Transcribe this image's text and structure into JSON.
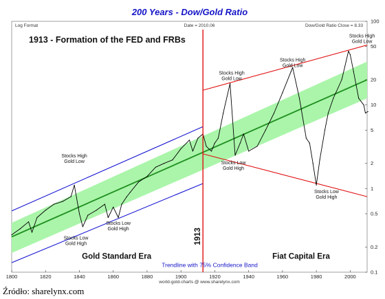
{
  "chart_data": {
    "type": "line",
    "title": "200 Years - Dow/Gold Ratio",
    "header_left": "Log Format",
    "header_center": "Date = 2010.06",
    "header_right": "Dow/Gold Ratio Close = 8.33",
    "heading_annotation": "1913 - Formation of the FED and FRBs",
    "xlim": [
      1800,
      2010
    ],
    "ylim": [
      0.1,
      100
    ],
    "log_y": true,
    "x_ticks": [
      1800,
      1820,
      1840,
      1860,
      1880,
      1900,
      1920,
      1940,
      1960,
      1980,
      2000
    ],
    "y_ticks": [
      0.1,
      0.2,
      0.5,
      1,
      2,
      5,
      10,
      20,
      50,
      100
    ],
    "y_tick_labels": [
      "0.1",
      "0.2",
      "0.5",
      "1",
      "2",
      "5",
      "10",
      "20",
      "50",
      "100"
    ],
    "series": [
      {
        "x": [
          1800,
          1805,
          1810,
          1812,
          1815,
          1820,
          1825,
          1830,
          1835,
          1837,
          1840,
          1842,
          1845,
          1850,
          1855,
          1857,
          1860,
          1863,
          1865,
          1868,
          1870,
          1875,
          1880,
          1885,
          1890,
          1895,
          1900,
          1905,
          1907,
          1910,
          1913,
          1915,
          1918,
          1920,
          1922,
          1925,
          1929,
          1932,
          1935,
          1937,
          1940,
          1945,
          1950,
          1955,
          1960,
          1965,
          1966,
          1970,
          1974,
          1976,
          1978,
          1980,
          1982,
          1985,
          1987,
          1990,
          1995,
          1999,
          2000,
          2002,
          2005,
          2008,
          2009,
          2010.5
        ],
        "values": [
          0.28,
          0.33,
          0.4,
          0.3,
          0.45,
          0.55,
          0.65,
          0.7,
          0.8,
          1.1,
          0.5,
          0.35,
          0.48,
          0.55,
          0.65,
          0.45,
          0.6,
          0.45,
          0.65,
          0.8,
          0.9,
          1.2,
          1.4,
          1.8,
          2.0,
          2.2,
          3.0,
          3.8,
          2.8,
          4.0,
          4.5,
          3.2,
          2.8,
          3.5,
          4.0,
          8.0,
          18.0,
          2.5,
          3.5,
          4.5,
          2.8,
          3.2,
          5.0,
          8.0,
          14.0,
          25.0,
          28.0,
          12.0,
          4.0,
          3.5,
          2.0,
          1.1,
          2.2,
          5.0,
          8.0,
          12.0,
          20.0,
          44.0,
          40.0,
          25.0,
          12.0,
          10.0,
          8.0,
          8.33
        ]
      },
      {
        "x": [
          1800,
          2010
        ],
        "values": [
          0.265,
          20.0
        ]
      }
    ],
    "bands": [
      {
        "x": [
          1800,
          2010
        ],
        "lower": [
          0.17,
          12.0
        ],
        "upper": [
          0.39,
          33.0
        ]
      }
    ],
    "channels": [
      {
        "x": [
          1800,
          1913
        ],
        "values": [
          0.54,
          5.5
        ]
      },
      {
        "x": [
          1800,
          1913
        ],
        "values": [
          0.13,
          1.15
        ]
      },
      {
        "x": [
          1913,
          2010
        ],
        "values": [
          15.0,
          52.0
        ]
      },
      {
        "x": [
          1913,
          2010
        ],
        "values": [
          2.6,
          0.8
        ]
      }
    ],
    "vline": {
      "x": 1913,
      "label": "1913"
    },
    "annotations": [
      {
        "x": 1837,
        "y": 2.35,
        "lines": [
          "Stocks High",
          "Gold Low"
        ]
      },
      {
        "x": 1838,
        "y": 0.245,
        "lines": [
          "Stocks Low",
          "Gold High"
        ]
      },
      {
        "x": 1863,
        "y": 0.37,
        "lines": [
          "Stocks Low",
          "Gold High"
        ]
      },
      {
        "x": 1930,
        "y": 23,
        "lines": [
          "Stocks High",
          "Gold Low"
        ]
      },
      {
        "x": 1931,
        "y": 1.95,
        "lines": [
          "Stocks Low",
          "Gold High"
        ]
      },
      {
        "x": 1966,
        "y": 33,
        "lines": [
          "Stocks High",
          "Gold Low"
        ]
      },
      {
        "x": 1986,
        "y": 0.88,
        "lines": [
          "Stocks Low",
          "Gold High"
        ]
      },
      {
        "x": 2007,
        "y": 64,
        "lines": [
          "Stocks High",
          "Gold Low"
        ]
      }
    ],
    "era_labels": [
      {
        "x": 1862,
        "y": 0.145,
        "text": "Gold Standard Era"
      },
      {
        "x": 1971,
        "y": 0.145,
        "text": "Fiat Capital Era"
      }
    ],
    "trend_label": {
      "x": 1917,
      "y": 0.115,
      "text": "Trendline with 75% Confidence Band"
    },
    "footer_credit": "world-gold-charts @ www.sharelynx.com",
    "colors": {
      "background": "#ffffff",
      "price": "#000000",
      "trend": "#1f8f1f",
      "band": "#aaf5aa",
      "channel_pre": "#1414d2",
      "channel_post": "#e01010",
      "vline": "#e01010",
      "title": "#1414c8"
    }
  },
  "source_caption": "Źródło: sharelynx.com"
}
